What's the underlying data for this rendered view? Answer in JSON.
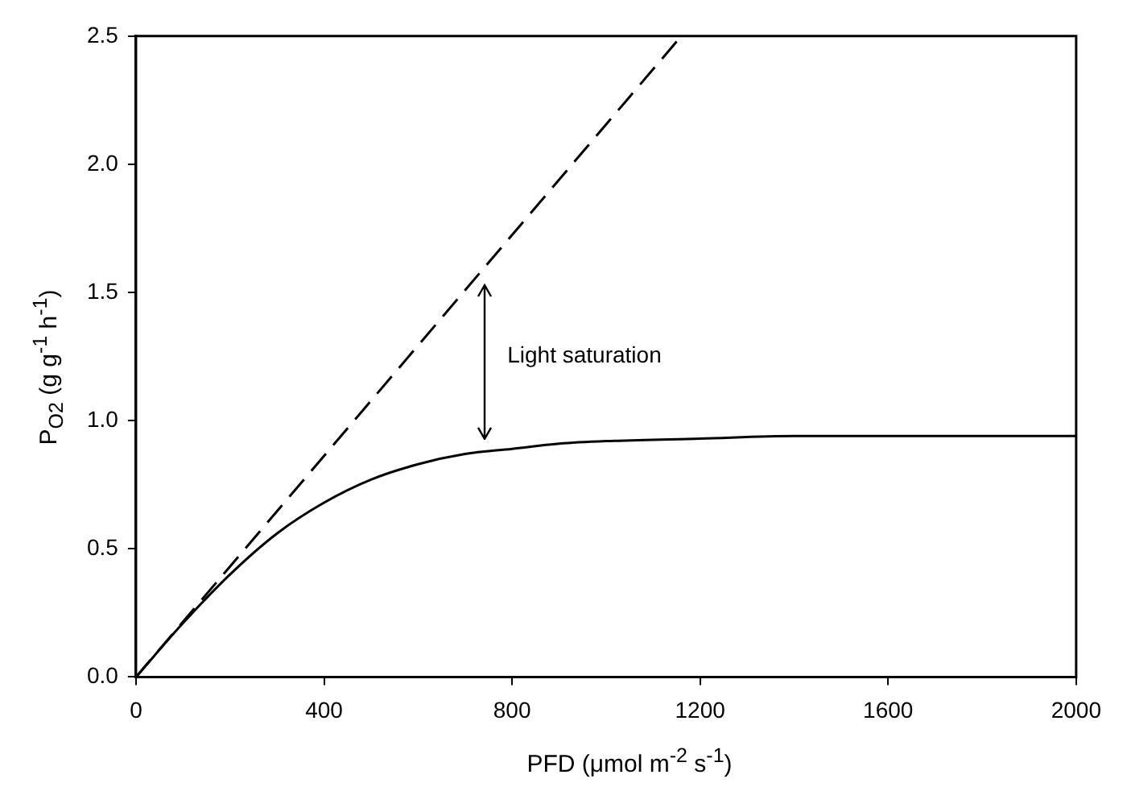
{
  "chart_data": {
    "type": "line",
    "xlabel": "PFD (μmol m$^{-2}$ s$^{-1}$)",
    "ylabel": "P$_{O2}$ (g g$^{-1}$ h$^{-1}$)",
    "xlim": [
      0,
      2000
    ],
    "xticks": [
      0,
      400,
      800,
      1200,
      1600,
      2000
    ],
    "ylim": [
      0,
      2.5
    ],
    "yticks": [
      {
        "value": 0,
        "label": "0.0"
      },
      {
        "value": 0.5,
        "label": "0.5"
      },
      {
        "value": 1,
        "label": "1.0"
      },
      {
        "value": 1.5,
        "label": "1.5"
      },
      {
        "value": 2,
        "label": "2.0"
      },
      {
        "value": 2.5,
        "label": "2.5"
      }
    ],
    "marker": "none",
    "series": [
      {
        "color": "#000000",
        "line_style": "solid",
        "x": [
          0,
          100,
          200,
          300,
          400,
          500,
          600,
          700,
          800,
          900,
          1000,
          1200,
          1400,
          1600,
          1800,
          2000
        ],
        "values": [
          0,
          0.21,
          0.4,
          0.56,
          0.68,
          0.77,
          0.83,
          0.87,
          0.89,
          0.91,
          0.92,
          0.93,
          0.94,
          0.94,
          0.94,
          0.94
        ]
      },
      {
        "color": "#000000",
        "line_style": "dashed",
        "x": [
          0,
          1160
        ],
        "values": [
          0,
          2.5
        ]
      }
    ],
    "annotations": [
      "Light saturation"
    ]
  }
}
